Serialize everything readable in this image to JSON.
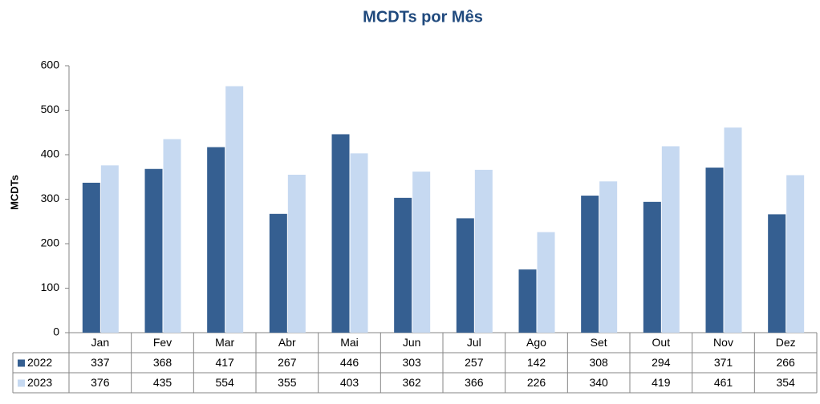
{
  "chart_data": {
    "type": "bar",
    "title": "MCDTs por Mês",
    "y_label": "MCDTs",
    "categories": [
      "Jan",
      "Fev",
      "Mar",
      "Abr",
      "Mai",
      "Jun",
      "Jul",
      "Ago",
      "Set",
      "Out",
      "Nov",
      "Dez"
    ],
    "series": [
      {
        "name": "2022",
        "color": "#355f91",
        "values": [
          337,
          368,
          417,
          267,
          446,
          303,
          257,
          142,
          308,
          294,
          371,
          266
        ]
      },
      {
        "name": "2023",
        "color": "#c6d9f1",
        "values": [
          376,
          435,
          554,
          355,
          403,
          362,
          366,
          226,
          340,
          419,
          461,
          354
        ]
      }
    ],
    "ylim": [
      0,
      600
    ],
    "yticks": [
      0,
      100,
      200,
      300,
      400,
      500,
      600
    ],
    "grid": false
  }
}
